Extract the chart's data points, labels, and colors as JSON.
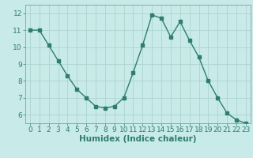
{
  "x": [
    0,
    1,
    2,
    3,
    4,
    5,
    6,
    7,
    8,
    9,
    10,
    11,
    12,
    13,
    14,
    15,
    16,
    17,
    18,
    19,
    20,
    21,
    22,
    23
  ],
  "y": [
    11.0,
    11.0,
    10.1,
    9.2,
    8.3,
    7.5,
    7.0,
    6.5,
    6.4,
    6.5,
    7.0,
    8.5,
    10.1,
    11.9,
    11.7,
    10.6,
    11.5,
    10.4,
    9.4,
    8.0,
    7.0,
    6.1,
    5.7,
    5.5
  ],
  "line_color": "#2e7d6e",
  "marker": "s",
  "markersize": 2.5,
  "linewidth": 1.0,
  "bg_color": "#c8eae8",
  "grid_color": "#add4d0",
  "xlabel": "Humidex (Indice chaleur)",
  "xlim": [
    -0.5,
    23.5
  ],
  "ylim": [
    5.5,
    12.5
  ],
  "yticks": [
    6,
    7,
    8,
    9,
    10,
    11,
    12
  ],
  "xticks": [
    0,
    1,
    2,
    3,
    4,
    5,
    6,
    7,
    8,
    9,
    10,
    11,
    12,
    13,
    14,
    15,
    16,
    17,
    18,
    19,
    20,
    21,
    22,
    23
  ],
  "tick_fontsize": 6.5,
  "xlabel_fontsize": 7.5,
  "xlabel_bold": true
}
